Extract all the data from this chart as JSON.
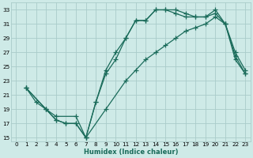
{
  "bg_color": "#ceeae7",
  "grid_color": "#aaccca",
  "line_color": "#1a6b5a",
  "line_width": 0.9,
  "marker": "+",
  "marker_size": 4,
  "marker_edge_width": 0.9,
  "xlabel": "Humidex (Indice chaleur)",
  "xlabel_fontsize": 6.0,
  "tick_fontsize": 5.2,
  "xlim": [
    -0.5,
    23.5
  ],
  "ylim": [
    14.5,
    34.0
  ],
  "xticks": [
    0,
    1,
    2,
    3,
    4,
    5,
    6,
    7,
    8,
    9,
    10,
    11,
    12,
    13,
    14,
    15,
    16,
    17,
    18,
    19,
    20,
    21,
    22,
    23
  ],
  "yticks": [
    15,
    17,
    19,
    21,
    23,
    25,
    27,
    29,
    31,
    33
  ],
  "line1_x": [
    1,
    2,
    3,
    4,
    5,
    6,
    7,
    8,
    9,
    10,
    11,
    12,
    13,
    14,
    15,
    16,
    17,
    18,
    19,
    20,
    21,
    22,
    23
  ],
  "line1_y": [
    22,
    20,
    19,
    17.5,
    17,
    17,
    15,
    20,
    24.5,
    27,
    29,
    31.5,
    31.5,
    33,
    33,
    33,
    32.5,
    32,
    32,
    33,
    31,
    27,
    24.5
  ],
  "line2_x": [
    1,
    3,
    4,
    5,
    6,
    7,
    8,
    9,
    10,
    11,
    12,
    13,
    14,
    15,
    16,
    17,
    18,
    19,
    20,
    21,
    22,
    23
  ],
  "line2_y": [
    22,
    19,
    17.5,
    17,
    17,
    15,
    20,
    24,
    26,
    29,
    31.5,
    31.5,
    33,
    33,
    32.5,
    32,
    32,
    32,
    32.5,
    31,
    26.5,
    24
  ],
  "line3_x": [
    1,
    3,
    4,
    6,
    7,
    9,
    11,
    12,
    13,
    14,
    15,
    16,
    17,
    18,
    19,
    20,
    21,
    22,
    23
  ],
  "line3_y": [
    22,
    19,
    18,
    18,
    15,
    19,
    23,
    24.5,
    26,
    27,
    28,
    29,
    30,
    30.5,
    31,
    32,
    31,
    26,
    24
  ]
}
